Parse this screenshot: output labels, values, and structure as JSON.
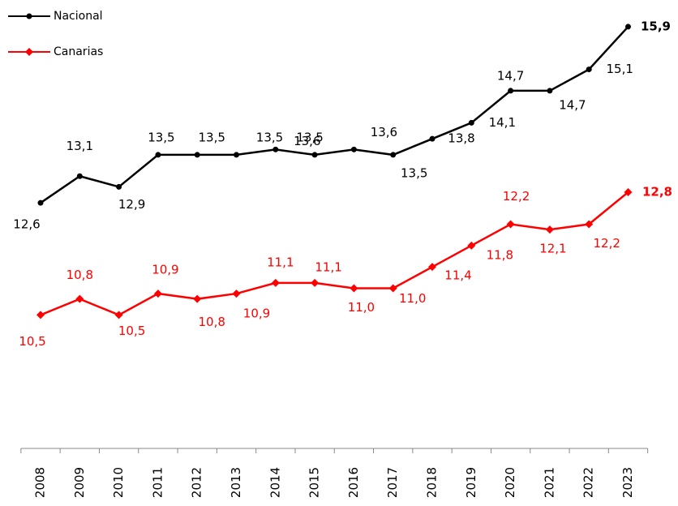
{
  "chart_data": {
    "type": "line",
    "categories": [
      "2008",
      "2009",
      "2010",
      "2011",
      "2012",
      "2013",
      "2014",
      "2015",
      "2016",
      "2017",
      "2018",
      "2019",
      "2020",
      "2021",
      "2022",
      "2023"
    ],
    "series": [
      {
        "name": "Nacional",
        "color": "#000000",
        "values": [
          12.6,
          13.1,
          12.9,
          13.5,
          13.5,
          13.5,
          13.6,
          13.5,
          13.6,
          13.5,
          13.8,
          14.1,
          14.7,
          14.7,
          15.1,
          15.9
        ],
        "value_labels": [
          "12,6",
          "13,1",
          "12,9",
          "13,5",
          "13,5",
          "13,5",
          "13,6",
          "13,5",
          "13,6",
          "13,5",
          "13,8",
          "14,1",
          "14,7",
          "14,7",
          "15,1",
          "15,9"
        ]
      },
      {
        "name": "Canarias",
        "color": "#ff0000",
        "values": [
          10.5,
          10.8,
          10.5,
          10.9,
          10.8,
          10.9,
          11.1,
          11.1,
          11.0,
          11.0,
          11.4,
          11.8,
          12.2,
          12.1,
          12.2,
          12.8
        ],
        "value_labels": [
          "10,5",
          "10,8",
          "10,5",
          "10,9",
          "10,8",
          "10,9",
          "11,1",
          "11,1",
          "11,0",
          "11,0",
          "11,4",
          "11,8",
          "12,2",
          "12,1",
          "12,2",
          "12,8"
        ]
      }
    ],
    "ylim": [
      8,
      16.4
    ]
  }
}
